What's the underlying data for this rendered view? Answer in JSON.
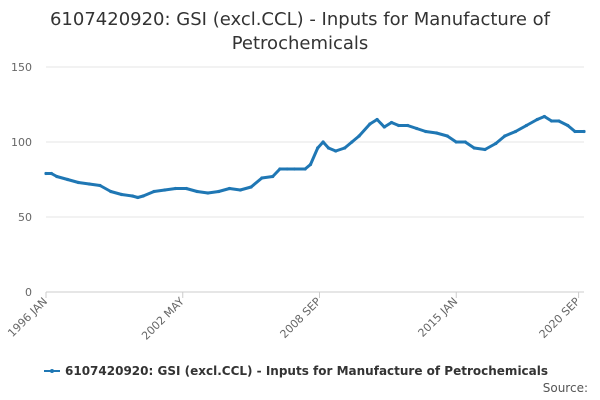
{
  "title": "6107420920: GSI (excl.CCL) - Inputs for Manufacture of Petrochemicals",
  "source_label": "Source:",
  "colors": {
    "series": "#1f77b4",
    "grid": "#e6e6e6",
    "axis": "#cccccc",
    "text": "#666666"
  },
  "chart_data": {
    "type": "line",
    "title": "6107420920: GSI (excl.CCL) - Inputs for Manufacture of Petrochemicals",
    "xlabel": "",
    "ylabel": "",
    "ylim": [
      0,
      150
    ],
    "yticks": [
      0,
      50,
      100,
      150
    ],
    "x_range": [
      "1996-01",
      "2020-12"
    ],
    "x_tick_labels": [
      {
        "label": "1996 JAN",
        "date": "1996-01"
      },
      {
        "label": "2002 MAY",
        "date": "2002-05"
      },
      {
        "label": "2008 SEP",
        "date": "2008-09"
      },
      {
        "label": "2015 JAN",
        "date": "2015-01"
      },
      {
        "label": "2020 SEP",
        "date": "2020-09"
      }
    ],
    "grid": true,
    "legend": "bottom",
    "series": [
      {
        "name": "6107420920: GSI (excl.CCL) - Inputs for Manufacture of Petrochemicals",
        "points": [
          [
            "1996-01",
            79
          ],
          [
            "1996-04",
            79
          ],
          [
            "1996-07",
            77
          ],
          [
            "1997-01",
            75
          ],
          [
            "1997-07",
            73
          ],
          [
            "1998-01",
            72
          ],
          [
            "1998-07",
            71
          ],
          [
            "1999-01",
            67
          ],
          [
            "1999-07",
            65
          ],
          [
            "2000-01",
            64
          ],
          [
            "2000-04",
            63
          ],
          [
            "2000-07",
            64
          ],
          [
            "2001-01",
            67
          ],
          [
            "2001-07",
            68
          ],
          [
            "2002-01",
            69
          ],
          [
            "2002-07",
            69
          ],
          [
            "2003-01",
            67
          ],
          [
            "2003-07",
            66
          ],
          [
            "2004-01",
            67
          ],
          [
            "2004-07",
            69
          ],
          [
            "2005-01",
            68
          ],
          [
            "2005-07",
            70
          ],
          [
            "2006-01",
            76
          ],
          [
            "2006-07",
            77
          ],
          [
            "2006-11",
            82
          ],
          [
            "2007-03",
            82
          ],
          [
            "2007-07",
            82
          ],
          [
            "2008-01",
            82
          ],
          [
            "2008-04",
            85
          ],
          [
            "2008-08",
            96
          ],
          [
            "2008-11",
            100
          ],
          [
            "2009-02",
            96
          ],
          [
            "2009-06",
            94
          ],
          [
            "2009-11",
            96
          ],
          [
            "2010-03",
            100
          ],
          [
            "2010-07",
            104
          ],
          [
            "2011-01",
            112
          ],
          [
            "2011-05",
            115
          ],
          [
            "2011-09",
            110
          ],
          [
            "2012-01",
            113
          ],
          [
            "2012-05",
            111
          ],
          [
            "2012-10",
            111
          ],
          [
            "2013-03",
            109
          ],
          [
            "2013-08",
            107
          ],
          [
            "2014-02",
            106
          ],
          [
            "2014-08",
            104
          ],
          [
            "2015-01",
            100
          ],
          [
            "2015-06",
            100
          ],
          [
            "2015-11",
            96
          ],
          [
            "2016-05",
            95
          ],
          [
            "2016-11",
            99
          ],
          [
            "2017-04",
            104
          ],
          [
            "2017-10",
            107
          ],
          [
            "2018-04",
            111
          ],
          [
            "2018-10",
            115
          ],
          [
            "2019-02",
            117
          ],
          [
            "2019-06",
            114
          ],
          [
            "2019-10",
            114
          ],
          [
            "2020-03",
            111
          ],
          [
            "2020-07",
            107
          ],
          [
            "2020-12",
            107
          ]
        ]
      }
    ]
  }
}
